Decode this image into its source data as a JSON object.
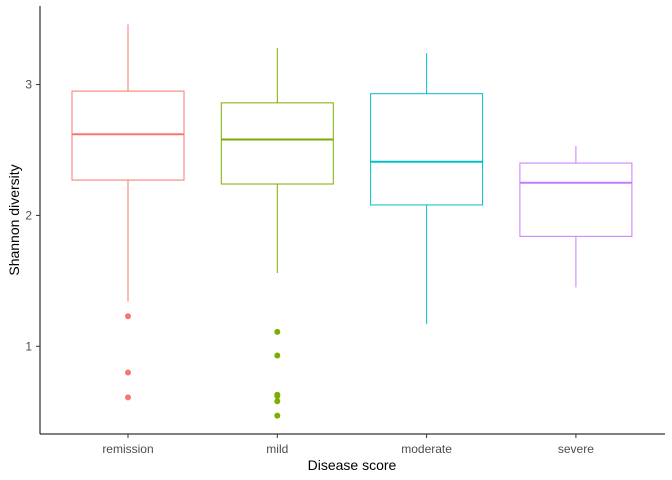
{
  "chart_data": {
    "type": "boxplot",
    "xlabel": "Disease score",
    "ylabel": "Shannon diversity",
    "categories": [
      "remission",
      "mild",
      "moderate",
      "severe"
    ],
    "colors": [
      "#F8766D",
      "#7CAE00",
      "#00BFC4",
      "#C77CFF"
    ],
    "ylim": [
      0.33,
      3.6
    ],
    "yticks": [
      1,
      2,
      3
    ],
    "grid": false,
    "legend": "none",
    "boxes": [
      {
        "category": "remission",
        "whisker_low": 1.34,
        "q1": 2.27,
        "median": 2.62,
        "q3": 2.95,
        "whisker_high": 3.46,
        "outliers": [
          1.23,
          0.8,
          0.61
        ]
      },
      {
        "category": "mild",
        "whisker_low": 1.56,
        "q1": 2.24,
        "median": 2.58,
        "q3": 2.86,
        "whisker_high": 3.28,
        "outliers": [
          1.11,
          0.93,
          0.63,
          0.62,
          0.58,
          0.47
        ]
      },
      {
        "category": "moderate",
        "whisker_low": 1.17,
        "q1": 2.08,
        "median": 2.41,
        "q3": 2.93,
        "whisker_high": 3.24,
        "outliers": []
      },
      {
        "category": "severe",
        "whisker_low": 1.45,
        "q1": 1.84,
        "median": 2.25,
        "q3": 2.4,
        "whisker_high": 2.53,
        "outliers": []
      }
    ]
  }
}
